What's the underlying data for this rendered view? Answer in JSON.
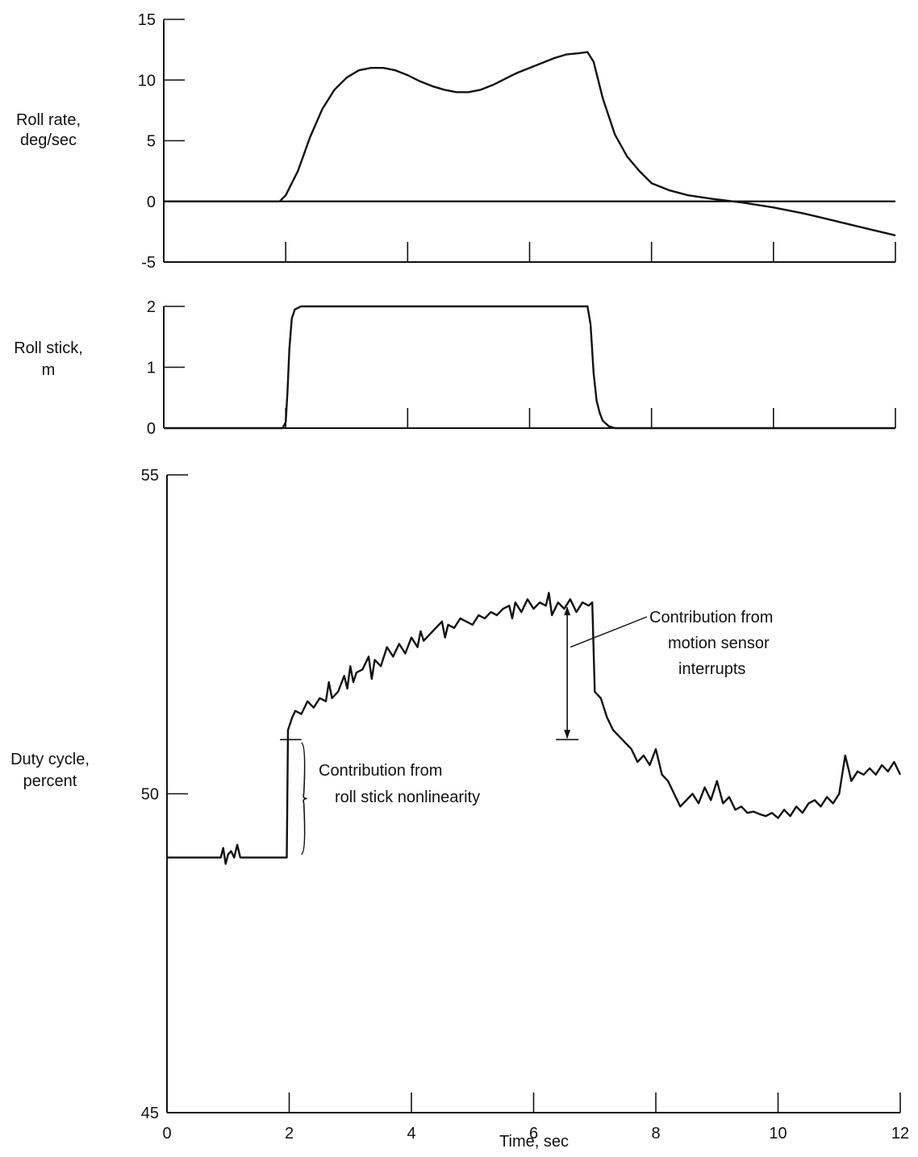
{
  "chart_data": [
    {
      "type": "line",
      "ylabel": [
        "Roll rate,",
        "deg/sec"
      ],
      "ylim": [
        -5,
        15
      ],
      "yticks": [
        -5,
        0,
        5,
        10,
        15
      ],
      "xlim": [
        0,
        12
      ],
      "xticks": [
        0,
        2,
        4,
        6,
        8,
        10,
        12
      ],
      "grid": false,
      "series": [
        {
          "x": [
            0,
            1.9,
            2.0,
            2.2,
            2.4,
            2.6,
            2.8,
            3.0,
            3.2,
            3.4,
            3.6,
            3.8,
            4.0,
            4.2,
            4.4,
            4.6,
            4.8,
            5.0,
            5.2,
            5.4,
            5.6,
            5.8,
            6.0,
            6.2,
            6.4,
            6.6,
            6.8,
            6.95,
            7.05,
            7.2,
            7.4,
            7.6,
            7.8,
            8.0,
            8.3,
            8.6,
            9.0,
            9.5,
            10.0,
            10.5,
            11.0,
            11.5,
            12.0
          ],
          "y": [
            0,
            0,
            0.5,
            2.5,
            5.3,
            7.6,
            9.2,
            10.2,
            10.8,
            11.0,
            11.0,
            10.8,
            10.4,
            9.9,
            9.5,
            9.2,
            9.0,
            9.0,
            9.2,
            9.6,
            10.1,
            10.6,
            11.0,
            11.4,
            11.8,
            12.1,
            12.2,
            12.3,
            11.5,
            8.5,
            5.5,
            3.7,
            2.5,
            1.5,
            0.9,
            0.5,
            0.2,
            -0.1,
            -0.5,
            -1.0,
            -1.6,
            -2.2,
            -2.8
          ]
        }
      ]
    },
    {
      "type": "line",
      "ylabel": [
        "Roll stick,",
        "m"
      ],
      "ylim": [
        0,
        2
      ],
      "yticks": [
        0,
        1,
        2
      ],
      "xlim": [
        0,
        12
      ],
      "xticks": [
        0,
        2,
        4,
        6,
        8,
        10,
        12
      ],
      "grid": false,
      "series": [
        {
          "x": [
            0,
            1.95,
            2.0,
            2.03,
            2.06,
            2.1,
            2.15,
            2.25,
            2.4,
            6.95,
            7.0,
            7.05,
            7.1,
            7.15,
            7.2,
            7.3,
            7.4,
            12.0
          ],
          "y": [
            0,
            0,
            0.1,
            0.6,
            1.3,
            1.8,
            1.95,
            2.0,
            2.0,
            2.0,
            1.7,
            0.9,
            0.45,
            0.25,
            0.12,
            0.03,
            0,
            0
          ]
        }
      ]
    },
    {
      "type": "line",
      "ylabel": [
        "Duty cycle,",
        "percent"
      ],
      "xlabel": "Time, sec",
      "ylim": [
        45,
        55
      ],
      "yticks": [
        45,
        50,
        55
      ],
      "xlim": [
        0,
        12
      ],
      "xticks": [
        0,
        2,
        4,
        6,
        8,
        10,
        12
      ],
      "xticklabels": [
        "0",
        "2",
        "4",
        "6",
        "8",
        "10",
        "12"
      ],
      "grid": false,
      "series": [
        {
          "x": [
            0,
            0.88,
            0.92,
            0.96,
            1.0,
            1.05,
            1.1,
            1.15,
            1.2,
            1.25,
            1.3,
            1.96,
            1.98,
            2.05,
            2.1,
            2.2,
            2.3,
            2.4,
            2.5,
            2.6,
            2.65,
            2.7,
            2.8,
            2.9,
            2.95,
            3.0,
            3.05,
            3.1,
            3.2,
            3.3,
            3.35,
            3.4,
            3.5,
            3.6,
            3.7,
            3.8,
            3.9,
            4.0,
            4.1,
            4.15,
            4.2,
            4.3,
            4.4,
            4.5,
            4.55,
            4.6,
            4.7,
            4.8,
            4.9,
            5.0,
            5.1,
            5.2,
            5.3,
            5.4,
            5.5,
            5.6,
            5.65,
            5.7,
            5.8,
            5.9,
            6.0,
            6.1,
            6.2,
            6.25,
            6.3,
            6.4,
            6.5,
            6.6,
            6.7,
            6.8,
            6.9,
            6.96,
            7.0,
            7.1,
            7.2,
            7.3,
            7.4,
            7.5,
            7.6,
            7.7,
            7.8,
            7.9,
            8.0,
            8.1,
            8.2,
            8.3,
            8.4,
            8.5,
            8.6,
            8.7,
            8.8,
            8.9,
            9.0,
            9.1,
            9.2,
            9.3,
            9.4,
            9.5,
            9.6,
            9.7,
            9.8,
            9.9,
            10.0,
            10.1,
            10.2,
            10.3,
            10.4,
            10.5,
            10.6,
            10.7,
            10.8,
            10.9,
            11.0,
            11.05,
            11.1,
            11.2,
            11.3,
            11.4,
            11.5,
            11.6,
            11.7,
            11.8,
            11.9,
            12.0
          ],
          "y": [
            49.0,
            49.0,
            49.15,
            48.9,
            49.05,
            49.1,
            49.0,
            49.2,
            49.0,
            49.0,
            49.0,
            49.0,
            51.0,
            51.2,
            51.3,
            51.25,
            51.45,
            51.35,
            51.5,
            51.45,
            51.75,
            51.5,
            51.6,
            51.85,
            51.65,
            52.0,
            51.75,
            51.9,
            51.95,
            52.15,
            51.8,
            52.1,
            52.0,
            52.3,
            52.15,
            52.35,
            52.2,
            52.45,
            52.3,
            52.55,
            52.4,
            52.5,
            52.6,
            52.7,
            52.45,
            52.65,
            52.6,
            52.75,
            52.7,
            52.65,
            52.8,
            52.75,
            52.85,
            52.8,
            52.9,
            52.95,
            52.75,
            53.0,
            52.85,
            53.05,
            52.9,
            53.0,
            52.95,
            53.15,
            52.8,
            53.0,
            52.9,
            53.05,
            52.85,
            53.0,
            52.95,
            53.0,
            51.6,
            51.5,
            51.2,
            51.0,
            50.9,
            50.8,
            50.7,
            50.5,
            50.6,
            50.45,
            50.7,
            50.3,
            50.2,
            50.0,
            49.8,
            49.9,
            50.0,
            49.85,
            50.1,
            49.9,
            50.2,
            49.85,
            49.95,
            49.75,
            49.8,
            49.7,
            49.72,
            49.68,
            49.65,
            49.7,
            49.62,
            49.75,
            49.65,
            49.8,
            49.7,
            49.85,
            49.9,
            49.8,
            49.95,
            49.85,
            50.0,
            50.3,
            50.6,
            50.2,
            50.35,
            50.3,
            50.4,
            50.3,
            50.45,
            50.35,
            50.5,
            50.3
          ]
        }
      ],
      "annotations": [
        {
          "lines": [
            "Contribution from",
            "roll stick nonlinearity"
          ]
        },
        {
          "lines": [
            "Contribution from",
            "motion sensor",
            "interrupts"
          ]
        }
      ]
    }
  ]
}
